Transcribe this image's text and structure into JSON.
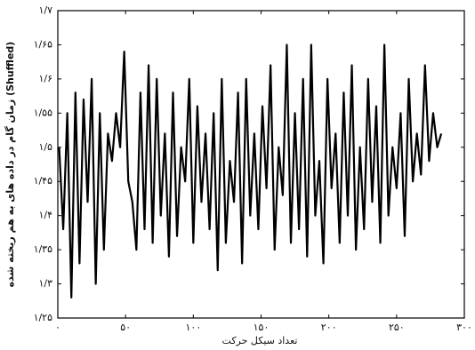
{
  "chart_data": {
    "type": "line",
    "y_label": "زمان گام در داده های به هم ریخته شده (Shuffled)",
    "x_label": "تعداد سیکل حرکت",
    "color": "#000000",
    "xlim": [
      0,
      300
    ],
    "xticks": [
      {
        "value": 0,
        "label": "۰"
      },
      {
        "value": 50,
        "label": "۵۰"
      },
      {
        "value": 100,
        "label": "۱۰۰"
      },
      {
        "value": 150,
        "label": "۱۵۰"
      },
      {
        "value": 200,
        "label": "۲۰۰"
      },
      {
        "value": 250,
        "label": "۲۵۰"
      },
      {
        "value": 300,
        "label": "۳۰۰"
      }
    ],
    "ylim": [
      1.25,
      1.7
    ],
    "yticks": [
      {
        "value": 1.25,
        "label": "۱/۲۵"
      },
      {
        "value": 1.3,
        "label": "۱/۳"
      },
      {
        "value": 1.35,
        "label": "۱/۳۵"
      },
      {
        "value": 1.4,
        "label": "۱/۴"
      },
      {
        "value": 1.45,
        "label": "۱/۴۵"
      },
      {
        "value": 1.5,
        "label": "۱/۵"
      },
      {
        "value": 1.55,
        "label": "۱/۵۵"
      },
      {
        "value": 1.6,
        "label": "۱/۶"
      },
      {
        "value": 1.65,
        "label": "۱/۶۵"
      },
      {
        "value": 1.7,
        "label": "۱/۷"
      }
    ],
    "x": [
      1,
      4,
      7,
      10,
      13,
      16,
      19,
      22,
      25,
      28,
      31,
      34,
      37,
      40,
      43,
      46,
      49,
      52,
      55,
      58,
      61,
      64,
      67,
      70,
      73,
      76,
      79,
      82,
      85,
      88,
      91,
      94,
      97,
      100,
      103,
      106,
      109,
      112,
      115,
      118,
      121,
      124,
      127,
      130,
      133,
      136,
      139,
      142,
      145,
      148,
      151,
      154,
      157,
      160,
      163,
      166,
      169,
      172,
      175,
      178,
      181,
      184,
      187,
      190,
      193,
      196,
      199,
      202,
      205,
      208,
      211,
      214,
      217,
      220,
      223,
      226,
      229,
      232,
      235,
      238,
      241,
      244,
      247,
      250,
      253,
      256,
      259,
      262,
      265,
      268,
      271,
      274,
      277,
      280,
      283
    ],
    "values": [
      1.5,
      1.38,
      1.55,
      1.28,
      1.58,
      1.33,
      1.57,
      1.42,
      1.6,
      1.3,
      1.55,
      1.35,
      1.52,
      1.48,
      1.55,
      1.5,
      1.64,
      1.45,
      1.42,
      1.35,
      1.58,
      1.38,
      1.62,
      1.36,
      1.6,
      1.4,
      1.52,
      1.34,
      1.58,
      1.37,
      1.5,
      1.45,
      1.6,
      1.36,
      1.56,
      1.42,
      1.52,
      1.38,
      1.55,
      1.32,
      1.6,
      1.36,
      1.48,
      1.42,
      1.58,
      1.33,
      1.6,
      1.4,
      1.52,
      1.38,
      1.56,
      1.44,
      1.62,
      1.35,
      1.5,
      1.43,
      1.65,
      1.36,
      1.55,
      1.38,
      1.6,
      1.34,
      1.65,
      1.4,
      1.48,
      1.33,
      1.6,
      1.44,
      1.52,
      1.36,
      1.58,
      1.4,
      1.62,
      1.35,
      1.5,
      1.38,
      1.6,
      1.42,
      1.56,
      1.36,
      1.65,
      1.4,
      1.5,
      1.44,
      1.55,
      1.37,
      1.6,
      1.45,
      1.52,
      1.46,
      1.62,
      1.48,
      1.55,
      1.5,
      1.52
    ]
  }
}
